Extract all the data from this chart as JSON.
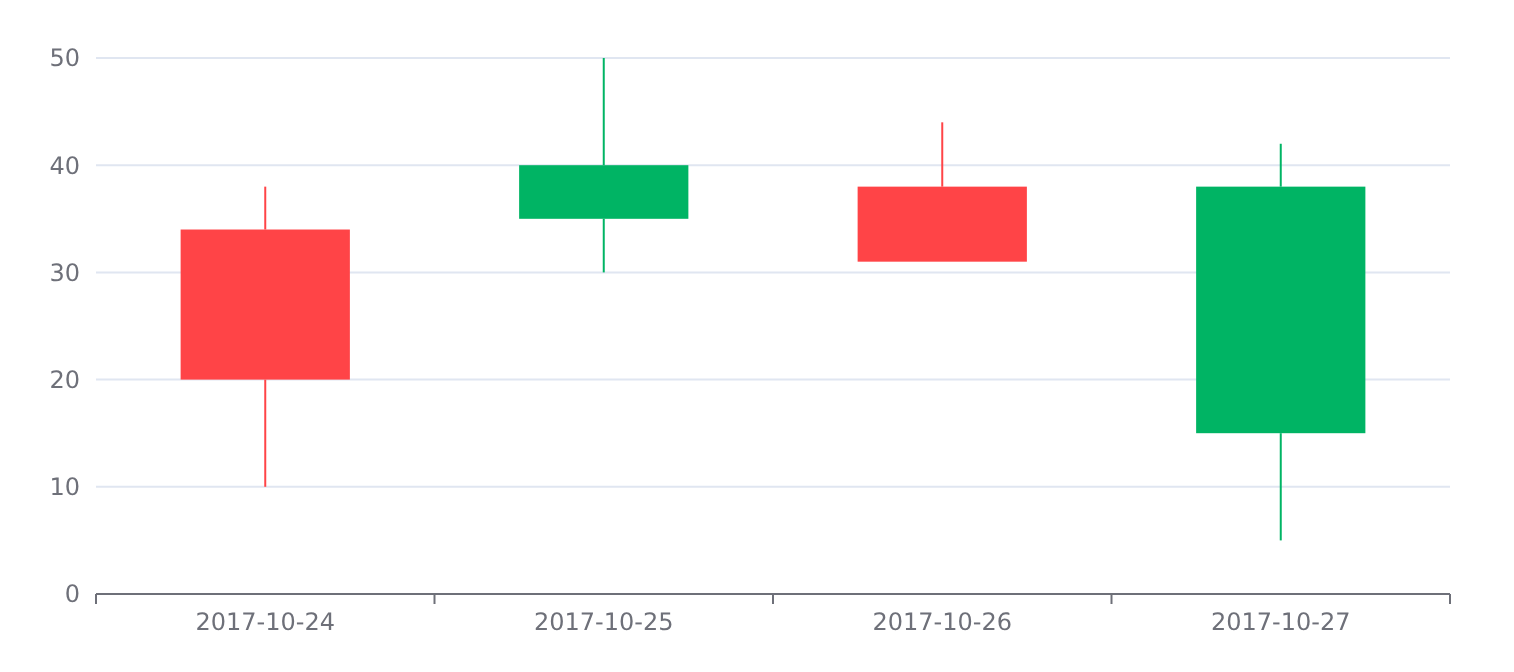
{
  "chart_data": {
    "type": "candlestick",
    "categories": [
      "2017-10-24",
      "2017-10-25",
      "2017-10-26",
      "2017-10-27"
    ],
    "ohlc": [
      [
        20,
        38,
        10,
        34
      ],
      [
        40,
        50,
        30,
        35
      ],
      [
        31,
        44,
        31,
        38
      ],
      [
        38,
        42,
        5,
        15
      ]
    ],
    "colors": [
      "#ff4447",
      "#00b464",
      "#ff4447",
      "#00b464"
    ],
    "ylim": [
      0,
      50
    ],
    "yticks": [
      0,
      10,
      20,
      30,
      40,
      50
    ],
    "grid": "y"
  }
}
